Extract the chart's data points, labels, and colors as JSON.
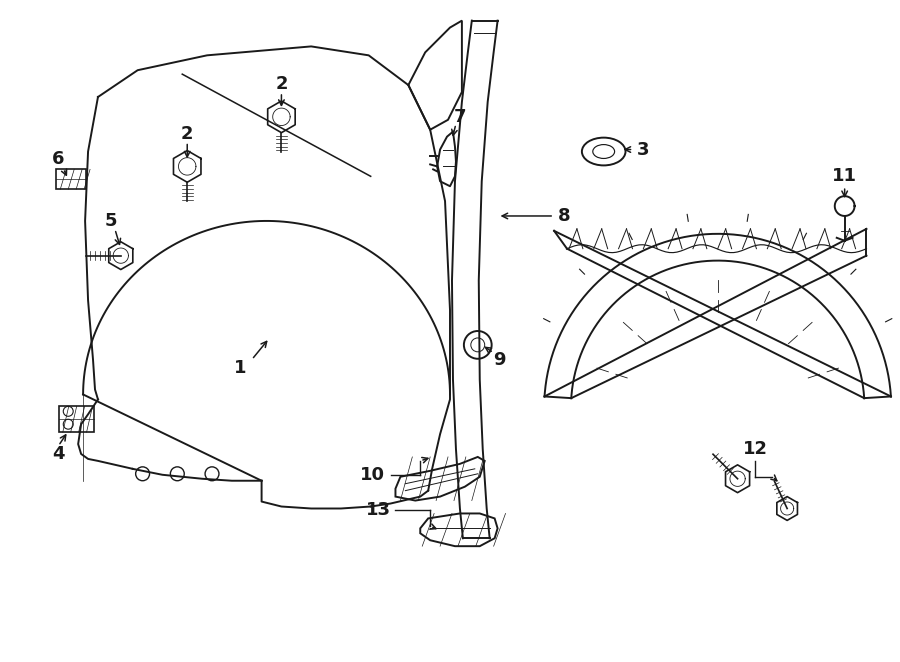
{
  "bg_color": "#ffffff",
  "line_color": "#1a1a1a",
  "lw": 1.4,
  "fig_w": 9.0,
  "fig_h": 6.62,
  "dpi": 100
}
